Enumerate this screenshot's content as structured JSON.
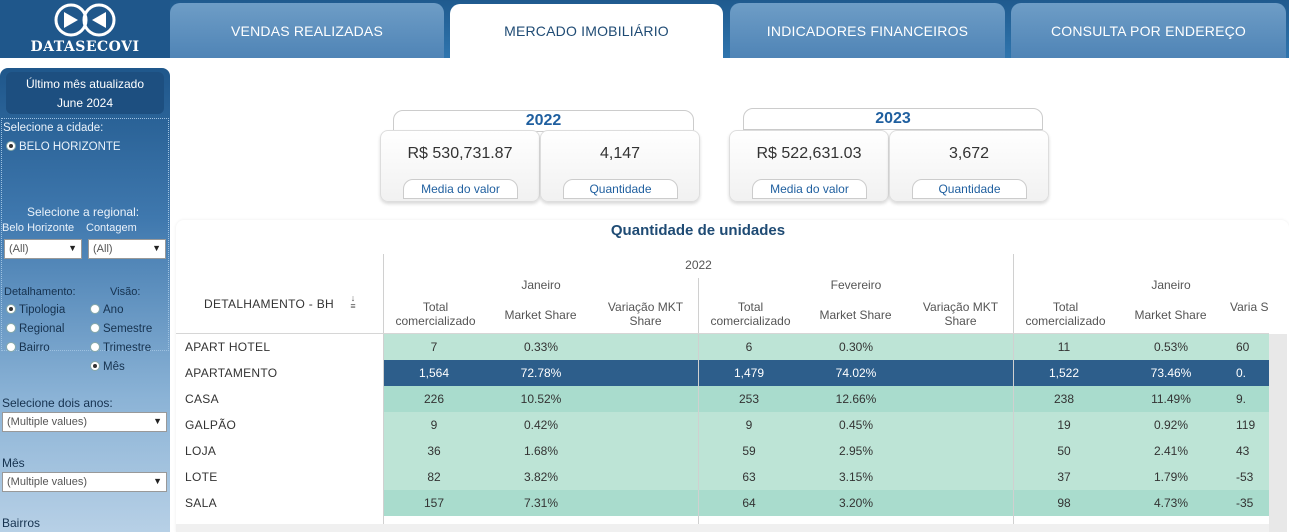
{
  "brand": {
    "logo_text": "DATASECOVI"
  },
  "tabs": [
    {
      "label": "VENDAS REALIZADAS"
    },
    {
      "label": "MERCADO IMOBILIÁRIO"
    },
    {
      "label": "INDICADORES FINANCEIROS"
    },
    {
      "label": "CONSULTA POR ENDEREÇO"
    }
  ],
  "sidebar": {
    "last_update_label": "Último mês atualizado",
    "last_update_value": "June 2024",
    "city_label": "Selecione a cidade:",
    "city_option": "BELO HORIZONTE",
    "regional_label": "Selecione a regional:",
    "bh_label": "Belo Horizonte",
    "contagem_label": "Contagem",
    "bh_value": "(All)",
    "contagem_value": "(All)",
    "detalhamento_label": "Detalhamento:",
    "detalhamento_options": [
      "Tipologia",
      "Regional",
      "Bairro"
    ],
    "visao_label": "Visão:",
    "visao_options": [
      "Ano",
      "Semestre",
      "Trimestre",
      "Mês"
    ],
    "anos_label": "Selecione dois anos:",
    "anos_value": "(Multiple values)",
    "mes_label": "Mês",
    "mes_value": "(Multiple values)",
    "bairros_label": "Bairros"
  },
  "kpis": [
    {
      "year": "2022",
      "media": "R$ 530,731.87",
      "quantidade": "4,147",
      "media_label": "Media do valor",
      "quantidade_label": "Quantidade"
    },
    {
      "year": "2023",
      "media": "R$ 522,631.03",
      "quantidade": "3,672",
      "media_label": "Media do valor",
      "quantidade_label": "Quantidade"
    }
  ],
  "table": {
    "title": "Quantidade de unidades",
    "row_header": "DETALHAMENTO - BH",
    "year_label": "2022",
    "months": [
      "Janeiro",
      "Fevereiro",
      "Janeiro"
    ],
    "col_total": "Total comercializado",
    "col_share": "Market Share",
    "col_var": "Variação MKT Share",
    "col_var_cut": "Varia S",
    "rows": [
      {
        "label": "APART HOTEL",
        "m1": [
          "7",
          "0.33%",
          ""
        ],
        "m2": [
          "6",
          "0.30%",
          ""
        ],
        "m3": [
          "11",
          "0.53%",
          "60"
        ]
      },
      {
        "label": "APARTAMENTO",
        "m1": [
          "1,564",
          "72.78%",
          ""
        ],
        "m2": [
          "1,479",
          "74.02%",
          ""
        ],
        "m3": [
          "1,522",
          "73.46%",
          "0."
        ]
      },
      {
        "label": "CASA",
        "m1": [
          "226",
          "10.52%",
          ""
        ],
        "m2": [
          "253",
          "12.66%",
          ""
        ],
        "m3": [
          "238",
          "11.49%",
          "9."
        ]
      },
      {
        "label": "GALPÃO",
        "m1": [
          "9",
          "0.42%",
          ""
        ],
        "m2": [
          "9",
          "0.45%",
          ""
        ],
        "m3": [
          "19",
          "0.92%",
          "119"
        ]
      },
      {
        "label": "LOJA",
        "m1": [
          "36",
          "1.68%",
          ""
        ],
        "m2": [
          "59",
          "2.95%",
          ""
        ],
        "m3": [
          "50",
          "2.41%",
          "43"
        ]
      },
      {
        "label": "LOTE",
        "m1": [
          "82",
          "3.82%",
          ""
        ],
        "m2": [
          "63",
          "3.15%",
          ""
        ],
        "m3": [
          "37",
          "1.79%",
          "-53"
        ]
      },
      {
        "label": "SALA",
        "m1": [
          "157",
          "7.31%",
          ""
        ],
        "m2": [
          "64",
          "3.20%",
          ""
        ],
        "m3": [
          "98",
          "4.73%",
          "-35"
        ]
      }
    ],
    "colors": {
      "light": "#bde4d6",
      "mid": "#a9dccd",
      "dark": "#2d5e8b"
    }
  }
}
